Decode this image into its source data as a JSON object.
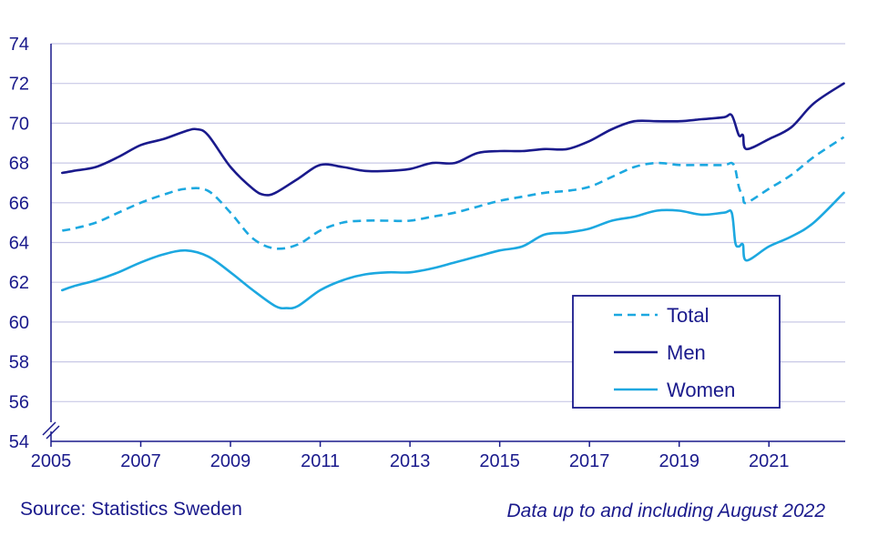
{
  "chart_data": {
    "type": "line",
    "title": "",
    "xlabel": "",
    "ylabel": "",
    "ylim": [
      54,
      74
    ],
    "xlim": [
      2005,
      2022.7
    ],
    "y_ticks": [
      54,
      56,
      58,
      60,
      62,
      64,
      66,
      68,
      70,
      72,
      74
    ],
    "x_ticks": [
      2005,
      2007,
      2009,
      2011,
      2013,
      2015,
      2017,
      2019,
      2021
    ],
    "y_tick_labels": [
      "54",
      "56",
      "58",
      "60",
      "62",
      "64",
      "66",
      "68",
      "70",
      "72",
      "74"
    ],
    "x_tick_labels": [
      "2005",
      "2007",
      "2009",
      "2011",
      "2013",
      "2015",
      "2017",
      "2019",
      "2021"
    ],
    "grid": "horizontal",
    "axis_break": true,
    "legend_position": "bottom-right",
    "series": [
      {
        "name": "Total",
        "style": "dashed",
        "color": "#1ca8e0",
        "x": [
          2005.25,
          2005.5,
          2006,
          2006.5,
          2007,
          2007.5,
          2008,
          2008.5,
          2009,
          2009.5,
          2010,
          2010.5,
          2011,
          2011.5,
          2012,
          2012.5,
          2013,
          2013.5,
          2014,
          2014.5,
          2015,
          2015.5,
          2016,
          2016.5,
          2017,
          2017.5,
          2018,
          2018.5,
          2019,
          2019.5,
          2020,
          2020.17,
          2020.25,
          2020.33,
          2020.42,
          2020.5,
          2021,
          2021.5,
          2022,
          2022.67
        ],
        "values": [
          64.6,
          64.7,
          65.0,
          65.5,
          66.0,
          66.4,
          66.7,
          66.6,
          65.5,
          64.2,
          63.7,
          63.9,
          64.6,
          65.0,
          65.1,
          65.1,
          65.1,
          65.3,
          65.5,
          65.8,
          66.1,
          66.3,
          66.5,
          66.6,
          66.8,
          67.3,
          67.8,
          68.0,
          67.9,
          67.9,
          67.9,
          68.0,
          67.7,
          66.8,
          66.3,
          66.0,
          66.7,
          67.4,
          68.3,
          69.3
        ]
      },
      {
        "name": "Men",
        "style": "solid",
        "color": "#1a1a8c",
        "x": [
          2005.25,
          2005.5,
          2006,
          2006.5,
          2007,
          2007.5,
          2008,
          2008.25,
          2008.5,
          2009,
          2009.5,
          2009.75,
          2010,
          2010.5,
          2011,
          2011.5,
          2012,
          2012.5,
          2013,
          2013.5,
          2014,
          2014.5,
          2015,
          2015.5,
          2016,
          2016.5,
          2017,
          2017.5,
          2018,
          2018.5,
          2019,
          2019.5,
          2020,
          2020.17,
          2020.33,
          2020.42,
          2020.5,
          2021,
          2021.5,
          2022,
          2022.67
        ],
        "values": [
          67.5,
          67.6,
          67.8,
          68.3,
          68.9,
          69.2,
          69.6,
          69.7,
          69.4,
          67.8,
          66.7,
          66.4,
          66.5,
          67.2,
          67.9,
          67.8,
          67.6,
          67.6,
          67.7,
          68.0,
          68.0,
          68.5,
          68.6,
          68.6,
          68.7,
          68.7,
          69.1,
          69.7,
          70.1,
          70.1,
          70.1,
          70.2,
          70.3,
          70.4,
          69.4,
          69.4,
          68.7,
          69.2,
          69.8,
          71.0,
          72.0
        ]
      },
      {
        "name": "Women",
        "style": "solid",
        "color": "#1ca8e0",
        "x": [
          2005.25,
          2005.5,
          2006,
          2006.5,
          2007,
          2007.5,
          2008,
          2008.5,
          2009,
          2009.5,
          2010,
          2010.25,
          2010.5,
          2011,
          2011.5,
          2012,
          2012.5,
          2013,
          2013.5,
          2014,
          2014.5,
          2015,
          2015.5,
          2016,
          2016.5,
          2017,
          2017.5,
          2018,
          2018.5,
          2019,
          2019.5,
          2020,
          2020.17,
          2020.25,
          2020.33,
          2020.42,
          2020.5,
          2021,
          2021.5,
          2022,
          2022.67
        ],
        "values": [
          61.6,
          61.8,
          62.1,
          62.5,
          63.0,
          63.4,
          63.6,
          63.3,
          62.5,
          61.6,
          60.8,
          60.7,
          60.8,
          61.6,
          62.1,
          62.4,
          62.5,
          62.5,
          62.7,
          63.0,
          63.3,
          63.6,
          63.8,
          64.4,
          64.5,
          64.7,
          65.1,
          65.3,
          65.6,
          65.6,
          65.4,
          65.5,
          65.5,
          64.0,
          63.8,
          63.9,
          63.1,
          63.8,
          64.3,
          65.0,
          66.5
        ]
      }
    ]
  },
  "footer": {
    "source": "Source: Statistics Sweden",
    "note": "Data up to and including August 2022"
  }
}
